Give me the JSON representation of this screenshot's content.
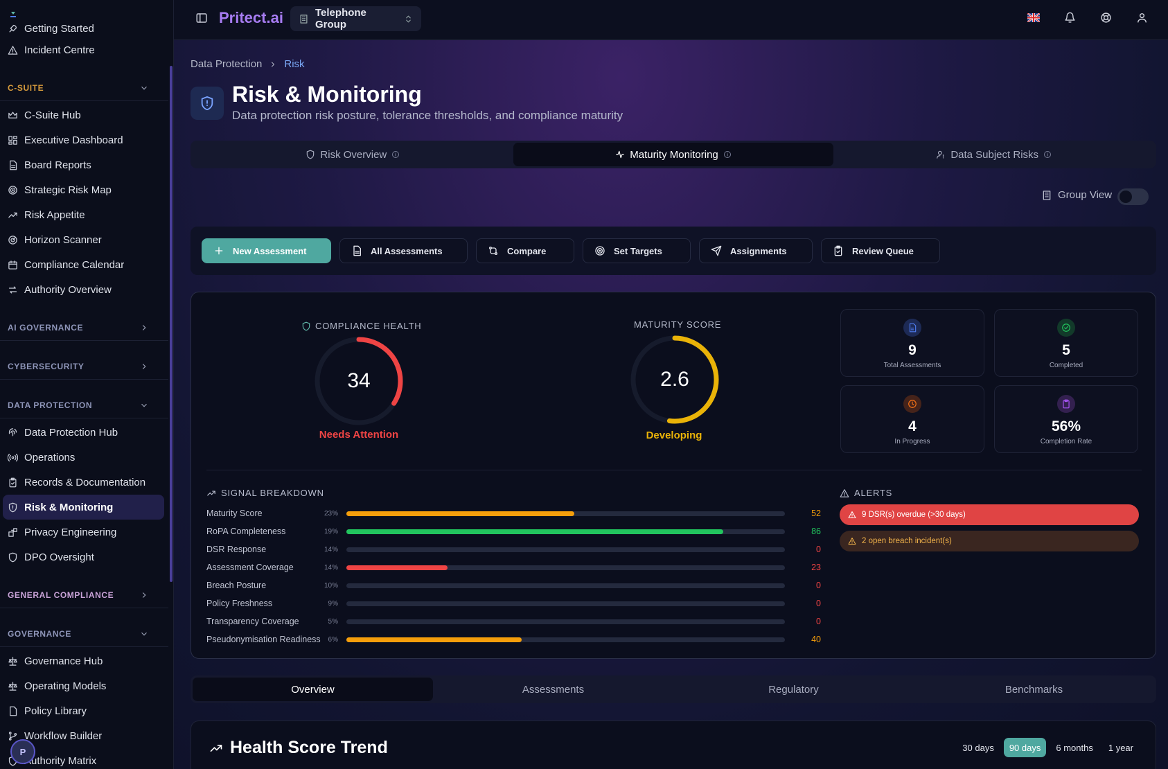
{
  "app": {
    "brand": "Pritect.ai",
    "org": "Telephone Group"
  },
  "sidebar": {
    "top_items": [
      {
        "label": "Getting Started",
        "icon": "rocket-icon"
      },
      {
        "label": "Incident Centre",
        "icon": "alert-triangle-icon"
      }
    ],
    "sections": {
      "csuite": "C-SUITE",
      "aigov": "AI GOVERNANCE",
      "cyber": "CYBERSECURITY",
      "dp": "DATA PROTECTION",
      "gc": "GENERAL COMPLIANCE",
      "gov": "GOVERNANCE"
    },
    "csuite_items": [
      "C-Suite Hub",
      "Executive Dashboard",
      "Board Reports",
      "Strategic Risk Map",
      "Risk Appetite",
      "Horizon Scanner",
      "Compliance Calendar",
      "Authority Overview"
    ],
    "dp_items": [
      "Data Protection Hub",
      "Operations",
      "Records & Documentation",
      "Risk & Monitoring",
      "Privacy Engineering",
      "DPO Oversight"
    ],
    "gov_items": [
      "Governance Hub",
      "Operating Models",
      "Policy Library",
      "Workflow Builder",
      "Authority Matrix"
    ],
    "avatar_initial": "P"
  },
  "breadcrumb": {
    "parent": "Data Protection",
    "current": "Risk"
  },
  "page": {
    "title": "Risk & Monitoring",
    "subtitle": "Data protection risk posture, tolerance thresholds, and compliance maturity"
  },
  "tabs": [
    "Risk Overview",
    "Maturity Monitoring",
    "Data Subject Risks"
  ],
  "active_tab": 1,
  "group_view": {
    "label": "Group View",
    "enabled": false
  },
  "actions": [
    "New Assessment",
    "All Assessments",
    "Compare",
    "Set Targets",
    "Assignments",
    "Review Queue"
  ],
  "compliance_health": {
    "label": "COMPLIANCE HEALTH",
    "value": "34",
    "status": "Needs Attention",
    "fraction": 0.34,
    "color": "#ef4444"
  },
  "maturity": {
    "label": "MATURITY SCORE",
    "value": "2.6",
    "status": "Developing",
    "fraction": 0.52,
    "color": "#eab308"
  },
  "stats": [
    {
      "num": "9",
      "label": "Total Assessments",
      "icon": "file-icon",
      "color": "#4f7cf0"
    },
    {
      "num": "5",
      "label": "Completed",
      "icon": "check-circle-icon",
      "color": "#22c55e"
    },
    {
      "num": "4",
      "label": "In Progress",
      "icon": "clock-icon",
      "color": "#f97316"
    },
    {
      "num": "56%",
      "label": "Completion Rate",
      "icon": "clipboard-icon",
      "color": "#a855f7"
    }
  ],
  "signal_breakdown": {
    "title": "SIGNAL BREAKDOWN",
    "rows": [
      {
        "name": "Maturity Score",
        "weight": "23%",
        "value": 52,
        "color": "#f59e0b"
      },
      {
        "name": "RoPA Completeness",
        "weight": "19%",
        "value": 86,
        "color": "#22c55e"
      },
      {
        "name": "DSR Response",
        "weight": "14%",
        "value": 0,
        "color": "#ef4444"
      },
      {
        "name": "Assessment Coverage",
        "weight": "14%",
        "value": 23,
        "color": "#ef4444"
      },
      {
        "name": "Breach Posture",
        "weight": "10%",
        "value": 0,
        "color": "#ef4444"
      },
      {
        "name": "Policy Freshness",
        "weight": "9%",
        "value": 0,
        "color": "#ef4444"
      },
      {
        "name": "Transparency Coverage",
        "weight": "5%",
        "value": 0,
        "color": "#ef4444"
      },
      {
        "name": "Pseudonymisation Readiness",
        "weight": "6%",
        "value": 40,
        "color": "#f59e0b"
      }
    ]
  },
  "alerts": {
    "title": "ALERTS",
    "items": [
      {
        "text": "9 DSR(s) overdue (>30 days)",
        "level": "critical"
      },
      {
        "text": "2 open breach incident(s)",
        "level": "warning"
      }
    ]
  },
  "subtabs": [
    "Overview",
    "Assessments",
    "Regulatory",
    "Benchmarks"
  ],
  "trend": {
    "title": "Health Score Trend",
    "ranges": [
      "30 days",
      "90 days",
      "6 months",
      "1 year"
    ],
    "active_range": 1
  }
}
